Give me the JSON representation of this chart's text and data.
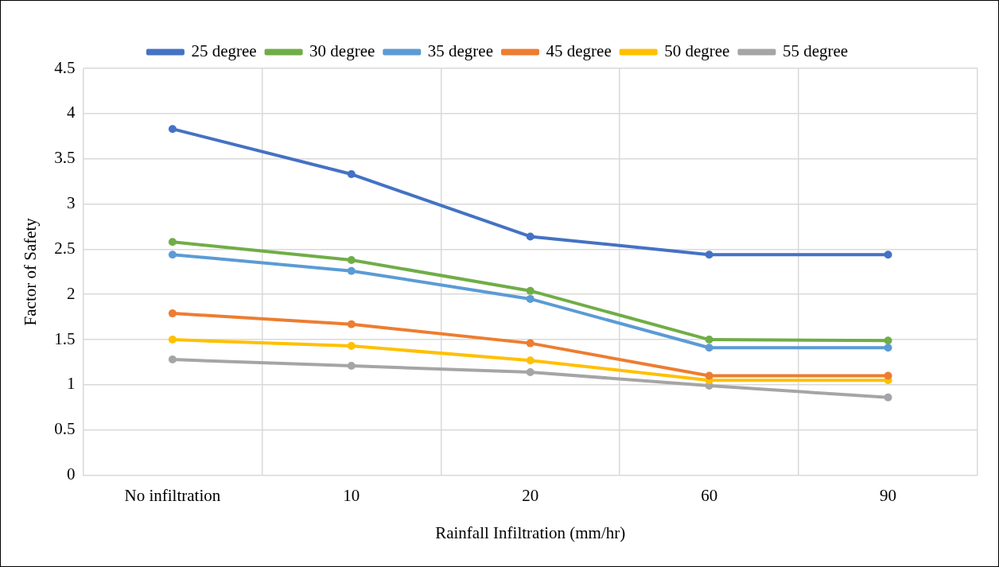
{
  "chart_data": {
    "type": "line",
    "xlabel": "Rainfall Infiltration (mm/hr)",
    "ylabel": "Factor of Safety",
    "categories": [
      "No infiltration",
      "10",
      "20",
      "60",
      "90"
    ],
    "series": [
      {
        "name": "25 degree",
        "color": "#4472c4",
        "values": [
          3.83,
          3.33,
          2.64,
          2.44,
          2.44
        ]
      },
      {
        "name": "30 degree",
        "color": "#70ad47",
        "values": [
          2.58,
          2.38,
          2.04,
          1.5,
          1.49
        ]
      },
      {
        "name": "35 degree",
        "color": "#5b9bd5",
        "values": [
          2.44,
          2.26,
          1.95,
          1.41,
          1.41
        ]
      },
      {
        "name": "45 degree",
        "color": "#ed7d31",
        "values": [
          1.79,
          1.67,
          1.46,
          1.1,
          1.1
        ]
      },
      {
        "name": "50 degree",
        "color": "#ffc000",
        "values": [
          1.5,
          1.43,
          1.27,
          1.05,
          1.05
        ]
      },
      {
        "name": "55 degree",
        "color": "#a5a5a5",
        "values": [
          1.28,
          1.21,
          1.14,
          0.99,
          0.86
        ]
      }
    ],
    "ylim": [
      0,
      4.5
    ],
    "yticks": [
      0,
      0.5,
      1,
      1.5,
      2,
      2.5,
      3,
      3.5,
      4,
      4.5
    ],
    "grid": true,
    "legend": "top",
    "marker": "circle",
    "line_style": "solid"
  }
}
